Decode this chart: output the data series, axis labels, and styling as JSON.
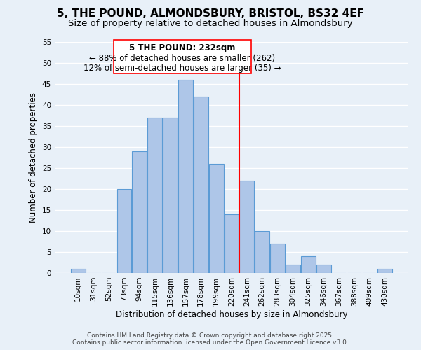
{
  "title": "5, THE POUND, ALMONDSBURY, BRISTOL, BS32 4EF",
  "subtitle": "Size of property relative to detached houses in Almondsbury",
  "bar_labels": [
    "10sqm",
    "31sqm",
    "52sqm",
    "73sqm",
    "94sqm",
    "115sqm",
    "136sqm",
    "157sqm",
    "178sqm",
    "199sqm",
    "220sqm",
    "241sqm",
    "262sqm",
    "283sqm",
    "304sqm",
    "325sqm",
    "346sqm",
    "367sqm",
    "388sqm",
    "409sqm",
    "430sqm"
  ],
  "bar_values": [
    1,
    0,
    0,
    20,
    29,
    37,
    37,
    46,
    42,
    26,
    14,
    22,
    10,
    7,
    2,
    4,
    2,
    0,
    0,
    0,
    1
  ],
  "bar_color": "#aec6e8",
  "bar_edge_color": "#5b9bd5",
  "ylabel": "Number of detached properties",
  "xlabel": "Distribution of detached houses by size in Almondsbury",
  "ylim": [
    0,
    55
  ],
  "yticks": [
    0,
    5,
    10,
    15,
    20,
    25,
    30,
    35,
    40,
    45,
    50,
    55
  ],
  "annotation_title": "5 THE POUND: 232sqm",
  "annotation_line1": "← 88% of detached houses are smaller (262)",
  "annotation_line2": "12% of semi-detached houses are larger (35) →",
  "vline_color": "red",
  "bg_color": "#e8f0f8",
  "grid_color": "#ffffff",
  "footer_line1": "Contains HM Land Registry data © Crown copyright and database right 2025.",
  "footer_line2": "Contains public sector information licensed under the Open Government Licence v3.0.",
  "title_fontsize": 11,
  "subtitle_fontsize": 9.5,
  "axis_label_fontsize": 8.5,
  "tick_fontsize": 7.5,
  "annotation_fontsize": 8.5,
  "footer_fontsize": 6.5
}
